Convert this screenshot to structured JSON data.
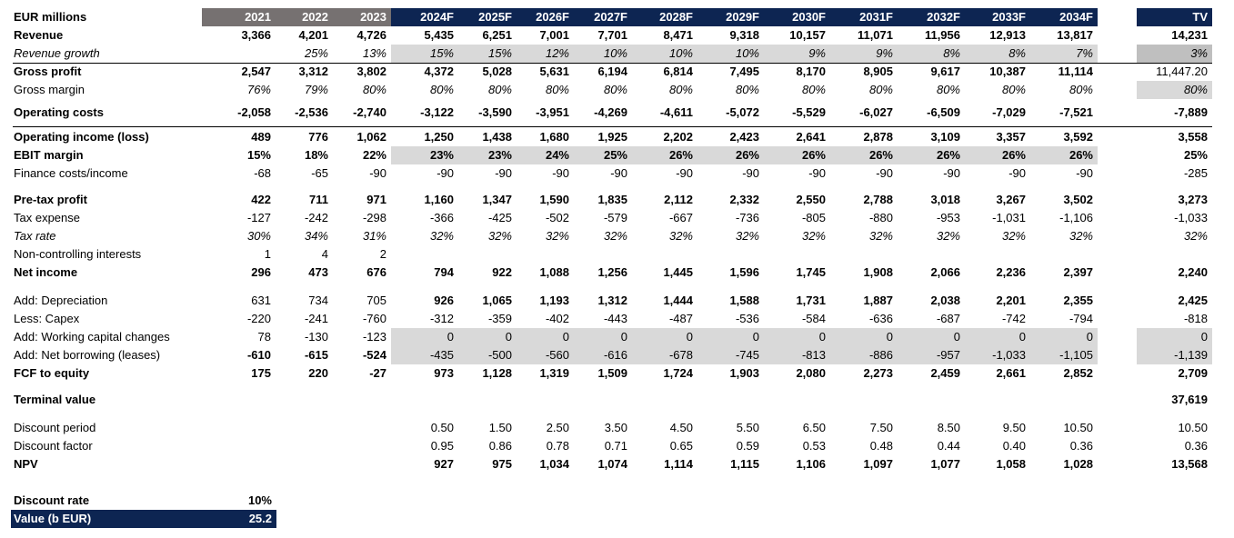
{
  "header": {
    "label": "EUR millions",
    "years": [
      "2021",
      "2022",
      "2023",
      "2024F",
      "2025F",
      "2026F",
      "2027F",
      "2028F",
      "2029F",
      "2030F",
      "2031F",
      "2032F",
      "2033F",
      "2034F"
    ],
    "tv": "TV"
  },
  "rows": [
    {
      "id": "revenue",
      "label": "Revenue",
      "style": "bold",
      "values": [
        "3,366",
        "4,201",
        "4,726",
        "5,435",
        "6,251",
        "7,001",
        "7,701",
        "8,471",
        "9,318",
        "10,157",
        "11,071",
        "11,956",
        "12,913",
        "13,817"
      ],
      "tv": "14,231"
    },
    {
      "id": "revenue-growth",
      "label": "Revenue growth",
      "style": "ital",
      "values": [
        "",
        "25%",
        "13%",
        "15%",
        "15%",
        "12%",
        "10%",
        "10%",
        "10%",
        "9%",
        "9%",
        "8%",
        "8%",
        "7%"
      ],
      "tv": "3%"
    },
    {
      "id": "gross-profit",
      "label": "Gross profit",
      "style": "bold",
      "values": [
        "2,547",
        "3,312",
        "3,802",
        "4,372",
        "5,028",
        "5,631",
        "6,194",
        "6,814",
        "7,495",
        "8,170",
        "8,905",
        "9,617",
        "10,387",
        "11,114"
      ],
      "tv": "11,447.20"
    },
    {
      "id": "gross-margin",
      "label": "Gross margin",
      "style": "ital-values",
      "values": [
        "76%",
        "79%",
        "80%",
        "80%",
        "80%",
        "80%",
        "80%",
        "80%",
        "80%",
        "80%",
        "80%",
        "80%",
        "80%",
        "80%"
      ],
      "tv": "80%"
    },
    {
      "id": "operating-costs",
      "label": "Operating costs",
      "style": "bold",
      "values": [
        "-2,058",
        "-2,536",
        "-2,740",
        "-3,122",
        "-3,590",
        "-3,951",
        "-4,269",
        "-4,611",
        "-5,072",
        "-5,529",
        "-6,027",
        "-6,509",
        "-7,029",
        "-7,521"
      ],
      "tv": "-7,889"
    },
    {
      "id": "operating-income",
      "label": "Operating income (loss)",
      "style": "bold",
      "values": [
        "489",
        "776",
        "1,062",
        "1,250",
        "1,438",
        "1,680",
        "1,925",
        "2,202",
        "2,423",
        "2,641",
        "2,878",
        "3,109",
        "3,357",
        "3,592"
      ],
      "tv": "3,558"
    },
    {
      "id": "ebit-margin",
      "label": "EBIT margin",
      "style": "bold",
      "values": [
        "15%",
        "18%",
        "22%",
        "23%",
        "23%",
        "24%",
        "25%",
        "26%",
        "26%",
        "26%",
        "26%",
        "26%",
        "26%",
        "26%"
      ],
      "tv": "25%"
    },
    {
      "id": "finance-costs",
      "label": "Finance costs/income",
      "style": "plain",
      "values": [
        "-68",
        "-65",
        "-90",
        "-90",
        "-90",
        "-90",
        "-90",
        "-90",
        "-90",
        "-90",
        "-90",
        "-90",
        "-90",
        "-90"
      ],
      "tv": "-285"
    },
    {
      "id": "pretax-profit",
      "label": "Pre-tax profit",
      "style": "bold",
      "values": [
        "422",
        "711",
        "971",
        "1,160",
        "1,347",
        "1,590",
        "1,835",
        "2,112",
        "2,332",
        "2,550",
        "2,788",
        "3,018",
        "3,267",
        "3,502"
      ],
      "tv": "3,273"
    },
    {
      "id": "tax-expense",
      "label": "Tax expense",
      "style": "plain",
      "values": [
        "-127",
        "-242",
        "-298",
        "-366",
        "-425",
        "-502",
        "-579",
        "-667",
        "-736",
        "-805",
        "-880",
        "-953",
        "-1,031",
        "-1,106"
      ],
      "tv": "-1,033"
    },
    {
      "id": "tax-rate",
      "label": "Tax rate",
      "style": "ital",
      "values": [
        "30%",
        "34%",
        "31%",
        "32%",
        "32%",
        "32%",
        "32%",
        "32%",
        "32%",
        "32%",
        "32%",
        "32%",
        "32%",
        "32%"
      ],
      "tv": "32%"
    },
    {
      "id": "nci",
      "label": "Non-controlling interests",
      "style": "plain",
      "values": [
        "1",
        "4",
        "2",
        "",
        "",
        "",
        "",
        "",
        "",
        "",
        "",
        "",
        "",
        ""
      ],
      "tv": ""
    },
    {
      "id": "net-income",
      "label": "Net income",
      "style": "bold",
      "values": [
        "296",
        "473",
        "676",
        "794",
        "922",
        "1,088",
        "1,256",
        "1,445",
        "1,596",
        "1,745",
        "1,908",
        "2,066",
        "2,236",
        "2,397"
      ],
      "tv": "2,240"
    },
    {
      "id": "depreciation",
      "label": "Add: Depreciation",
      "style": "plain-boldfc",
      "values": [
        "631",
        "734",
        "705",
        "926",
        "1,065",
        "1,193",
        "1,312",
        "1,444",
        "1,588",
        "1,731",
        "1,887",
        "2,038",
        "2,201",
        "2,355"
      ],
      "tv": "2,425"
    },
    {
      "id": "capex",
      "label": "Less: Capex",
      "style": "plain",
      "values": [
        "-220",
        "-241",
        "-760",
        "-312",
        "-359",
        "-402",
        "-443",
        "-487",
        "-536",
        "-584",
        "-636",
        "-687",
        "-742",
        "-794"
      ],
      "tv": "-818"
    },
    {
      "id": "working-capital",
      "label": "Add: Working capital changes",
      "style": "plain",
      "values": [
        "78",
        "-130",
        "-123",
        "0",
        "0",
        "0",
        "0",
        "0",
        "0",
        "0",
        "0",
        "0",
        "0",
        "0"
      ],
      "tv": "0"
    },
    {
      "id": "net-borrowing",
      "label": "Add: Net borrowing (leases)",
      "style": "plain-boldhist",
      "values": [
        "-610",
        "-615",
        "-524",
        "-435",
        "-500",
        "-560",
        "-616",
        "-678",
        "-745",
        "-813",
        "-886",
        "-957",
        "-1,033",
        "-1,105"
      ],
      "tv": "-1,139"
    },
    {
      "id": "fcf-equity",
      "label": "FCF to equity",
      "style": "bold",
      "values": [
        "175",
        "220",
        "-27",
        "973",
        "1,128",
        "1,319",
        "1,509",
        "1,724",
        "1,903",
        "2,080",
        "2,273",
        "2,459",
        "2,661",
        "2,852"
      ],
      "tv": "2,709"
    },
    {
      "id": "terminal-value",
      "label": "Terminal value",
      "style": "bold",
      "values": [
        "",
        "",
        "",
        "",
        "",
        "",
        "",
        "",
        "",
        "",
        "",
        "",
        "",
        ""
      ],
      "tv": "37,619"
    },
    {
      "id": "discount-period",
      "label": "Discount period",
      "style": "plain",
      "values": [
        "",
        "",
        "",
        "0.50",
        "1.50",
        "2.50",
        "3.50",
        "4.50",
        "5.50",
        "6.50",
        "7.50",
        "8.50",
        "9.50",
        "10.50"
      ],
      "tv": "10.50"
    },
    {
      "id": "discount-factor",
      "label": "Discount factor",
      "style": "plain",
      "values": [
        "",
        "",
        "",
        "0.95",
        "0.86",
        "0.78",
        "0.71",
        "0.65",
        "0.59",
        "0.53",
        "0.48",
        "0.44",
        "0.40",
        "0.36"
      ],
      "tv": "0.36"
    },
    {
      "id": "npv",
      "label": "NPV",
      "style": "bold",
      "values": [
        "",
        "",
        "",
        "927",
        "975",
        "1,034",
        "1,074",
        "1,114",
        "1,115",
        "1,106",
        "1,097",
        "1,077",
        "1,058",
        "1,028"
      ],
      "tv": "13,568"
    }
  ],
  "summary": {
    "discount_rate_label": "Discount rate",
    "discount_rate_value": "10%",
    "value_label": "Value (b EUR)",
    "value_value": "25.2"
  },
  "colors": {
    "hist_header": "#767171",
    "forecast_header": "#0d2552",
    "input_fill": "#d9d9d9"
  }
}
